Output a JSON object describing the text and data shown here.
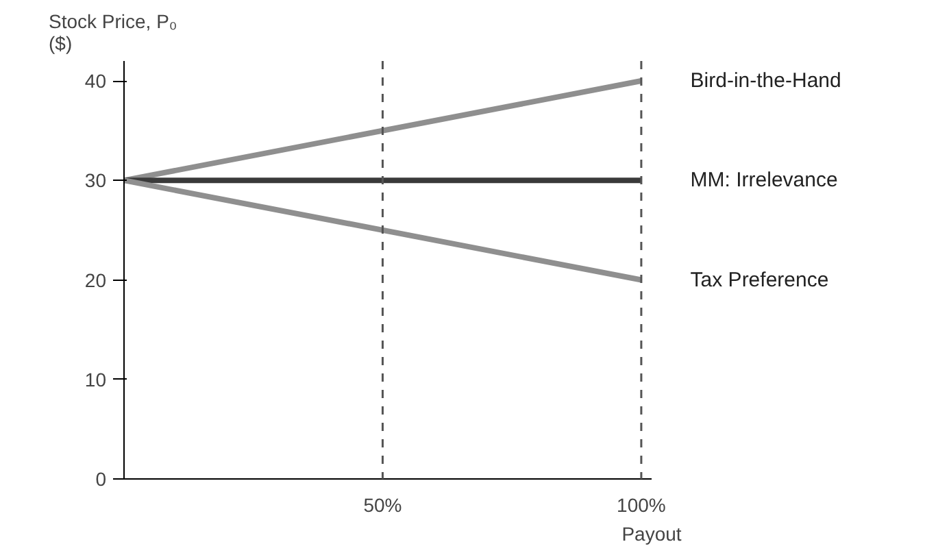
{
  "chart_data": {
    "type": "line",
    "ylabel": "Stock Price, P₀\n($)",
    "xlabel": "Payout",
    "x": [
      0,
      100
    ],
    "xlim": [
      0,
      102
    ],
    "ylim": [
      0,
      42
    ],
    "xticks": [
      {
        "value": 50,
        "label": "50%"
      },
      {
        "value": 100,
        "label": "100%"
      }
    ],
    "yticks": [
      0,
      10,
      20,
      30,
      40
    ],
    "grid": false,
    "marker": "none",
    "line_style": "solid",
    "series": [
      {
        "name": "Bird-in-the-Hand",
        "color": "#8f8f8f",
        "values": [
          30,
          40
        ]
      },
      {
        "name": "MM: Irrelevance",
        "color": "#3a3a3a",
        "values": [
          30,
          30
        ]
      },
      {
        "name": "Tax Preference",
        "color": "#8f8f8f",
        "values": [
          30,
          20
        ]
      }
    ],
    "ref_lines": [
      {
        "axis": "x",
        "value": 50,
        "label": null,
        "color": "#555555",
        "line_style": "dashed"
      },
      {
        "axis": "x",
        "value": 100,
        "label": null,
        "color": "#555555",
        "line_style": "dashed"
      }
    ]
  }
}
